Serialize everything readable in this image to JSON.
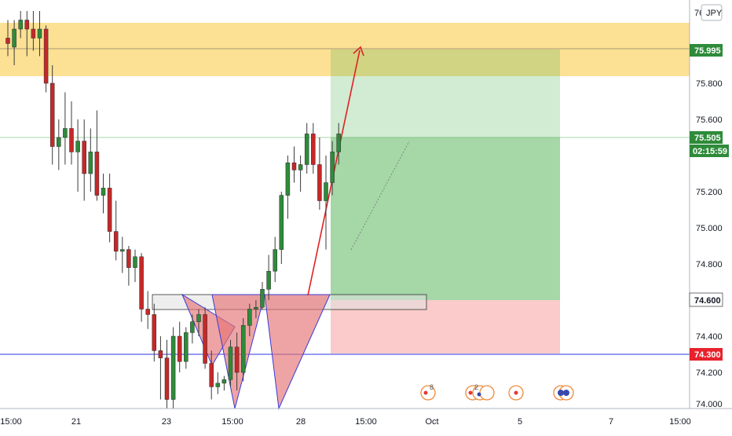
{
  "header": {
    "currency": "JPY",
    "axis_stub": "76"
  },
  "colors": {
    "bull": "#26a69a",
    "bull_fill": "#2e8b3a",
    "bear": "#c62828",
    "zone": "#f9c73d",
    "profit": "#4caf50",
    "loss": "#ef5350",
    "hline": "#2b36e0",
    "pattern": "#e57373"
  },
  "price_axis": {
    "ticks": [
      "75.800",
      "75.600",
      "75.200",
      "75.000",
      "74.800",
      "74.400",
      "74.200",
      "74.000"
    ],
    "tags": {
      "target": "75.995",
      "current": "75.505",
      "countdown": "02:15:59",
      "entry": "74.600",
      "stop": "74.300"
    }
  },
  "time_axis": {
    "labels": [
      "15:00",
      "21",
      "23",
      "15:00",
      "28",
      "15:00",
      "Oct",
      "5",
      "7",
      "15:00"
    ]
  },
  "events": [
    {
      "icon": "event-flag-icon",
      "count": "8"
    },
    {
      "icon": "event-flag-icon",
      "count": "2"
    },
    {
      "icon": "event-flag-icon",
      "count": ""
    },
    {
      "icon": "event-flag-icon",
      "count": ""
    }
  ],
  "chart_data": {
    "type": "candlestick",
    "title": "",
    "ylim": [
      73.96,
      76.1
    ],
    "price_levels": {
      "target": 75.995,
      "current": 75.505,
      "entry": 74.6,
      "stop": 74.3
    },
    "candles": [
      {
        "o": 76.05,
        "h": 76.15,
        "l": 75.95,
        "c": 76.02
      },
      {
        "o": 76.0,
        "h": 76.15,
        "l": 75.9,
        "c": 76.1
      },
      {
        "o": 76.1,
        "h": 76.2,
        "l": 76.05,
        "c": 76.15
      },
      {
        "o": 76.15,
        "h": 76.2,
        "l": 75.95,
        "c": 76.1
      },
      {
        "o": 76.1,
        "h": 76.2,
        "l": 75.98,
        "c": 76.05
      },
      {
        "o": 76.05,
        "h": 76.2,
        "l": 75.95,
        "c": 76.1
      },
      {
        "o": 76.1,
        "h": 76.12,
        "l": 75.75,
        "c": 75.8
      },
      {
        "o": 75.8,
        "h": 75.9,
        "l": 75.35,
        "c": 75.45
      },
      {
        "o": 75.45,
        "h": 75.6,
        "l": 75.32,
        "c": 75.5
      },
      {
        "o": 75.5,
        "h": 75.75,
        "l": 75.35,
        "c": 75.55
      },
      {
        "o": 75.55,
        "h": 75.7,
        "l": 75.35,
        "c": 75.42
      },
      {
        "o": 75.42,
        "h": 75.6,
        "l": 75.2,
        "c": 75.48
      },
      {
        "o": 75.48,
        "h": 75.6,
        "l": 75.15,
        "c": 75.3
      },
      {
        "o": 75.3,
        "h": 75.55,
        "l": 75.2,
        "c": 75.42
      },
      {
        "o": 75.42,
        "h": 75.65,
        "l": 75.15,
        "c": 75.18
      },
      {
        "o": 75.18,
        "h": 75.3,
        "l": 75.08,
        "c": 75.22
      },
      {
        "o": 75.22,
        "h": 75.3,
        "l": 74.92,
        "c": 74.98
      },
      {
        "o": 74.98,
        "h": 75.15,
        "l": 74.82,
        "c": 74.87
      },
      {
        "o": 74.87,
        "h": 74.95,
        "l": 74.75,
        "c": 74.88
      },
      {
        "o": 74.88,
        "h": 74.9,
        "l": 74.68,
        "c": 74.78
      },
      {
        "o": 74.78,
        "h": 74.88,
        "l": 74.7,
        "c": 74.84
      },
      {
        "o": 74.84,
        "h": 74.86,
        "l": 74.48,
        "c": 74.55
      },
      {
        "o": 74.55,
        "h": 74.65,
        "l": 74.44,
        "c": 74.52
      },
      {
        "o": 74.52,
        "h": 74.58,
        "l": 74.26,
        "c": 74.32
      },
      {
        "o": 74.32,
        "h": 74.4,
        "l": 74.05,
        "c": 74.28
      },
      {
        "o": 74.28,
        "h": 74.38,
        "l": 74.0,
        "c": 74.05
      },
      {
        "o": 74.05,
        "h": 74.45,
        "l": 74.0,
        "c": 74.4
      },
      {
        "o": 74.4,
        "h": 74.48,
        "l": 74.2,
        "c": 74.26
      },
      {
        "o": 74.26,
        "h": 74.45,
        "l": 74.22,
        "c": 74.42
      },
      {
        "o": 74.42,
        "h": 74.52,
        "l": 74.36,
        "c": 74.48
      },
      {
        "o": 74.48,
        "h": 74.55,
        "l": 74.4,
        "c": 74.52
      },
      {
        "o": 74.52,
        "h": 74.56,
        "l": 74.22,
        "c": 74.25
      },
      {
        "o": 74.25,
        "h": 74.32,
        "l": 74.05,
        "c": 74.12
      },
      {
        "o": 74.12,
        "h": 74.2,
        "l": 74.08,
        "c": 74.14
      },
      {
        "o": 74.14,
        "h": 74.18,
        "l": 74.1,
        "c": 74.16
      },
      {
        "o": 74.16,
        "h": 74.38,
        "l": 74.12,
        "c": 74.34
      },
      {
        "o": 74.34,
        "h": 74.42,
        "l": 74.1,
        "c": 74.2
      },
      {
        "o": 74.2,
        "h": 74.5,
        "l": 74.15,
        "c": 74.46
      },
      {
        "o": 74.46,
        "h": 74.58,
        "l": 74.4,
        "c": 74.55
      },
      {
        "o": 74.55,
        "h": 74.6,
        "l": 74.5,
        "c": 74.56
      },
      {
        "o": 74.56,
        "h": 74.7,
        "l": 74.55,
        "c": 74.66
      },
      {
        "o": 74.66,
        "h": 74.85,
        "l": 74.6,
        "c": 74.76
      },
      {
        "o": 74.76,
        "h": 74.95,
        "l": 74.7,
        "c": 74.88
      },
      {
        "o": 74.88,
        "h": 75.2,
        "l": 74.8,
        "c": 75.18
      },
      {
        "o": 75.18,
        "h": 75.4,
        "l": 75.05,
        "c": 75.36
      },
      {
        "o": 75.36,
        "h": 75.45,
        "l": 75.25,
        "c": 75.32
      },
      {
        "o": 75.32,
        "h": 75.4,
        "l": 75.2,
        "c": 75.35
      },
      {
        "o": 75.35,
        "h": 75.58,
        "l": 75.3,
        "c": 75.52
      },
      {
        "o": 75.52,
        "h": 75.58,
        "l": 75.3,
        "c": 75.35
      },
      {
        "o": 75.35,
        "h": 75.5,
        "l": 75.1,
        "c": 75.15
      },
      {
        "o": 75.15,
        "h": 75.4,
        "l": 74.88,
        "c": 75.25
      },
      {
        "o": 75.25,
        "h": 75.48,
        "l": 75.18,
        "c": 75.42
      },
      {
        "o": 75.42,
        "h": 75.58,
        "l": 75.35,
        "c": 75.52
      }
    ]
  }
}
